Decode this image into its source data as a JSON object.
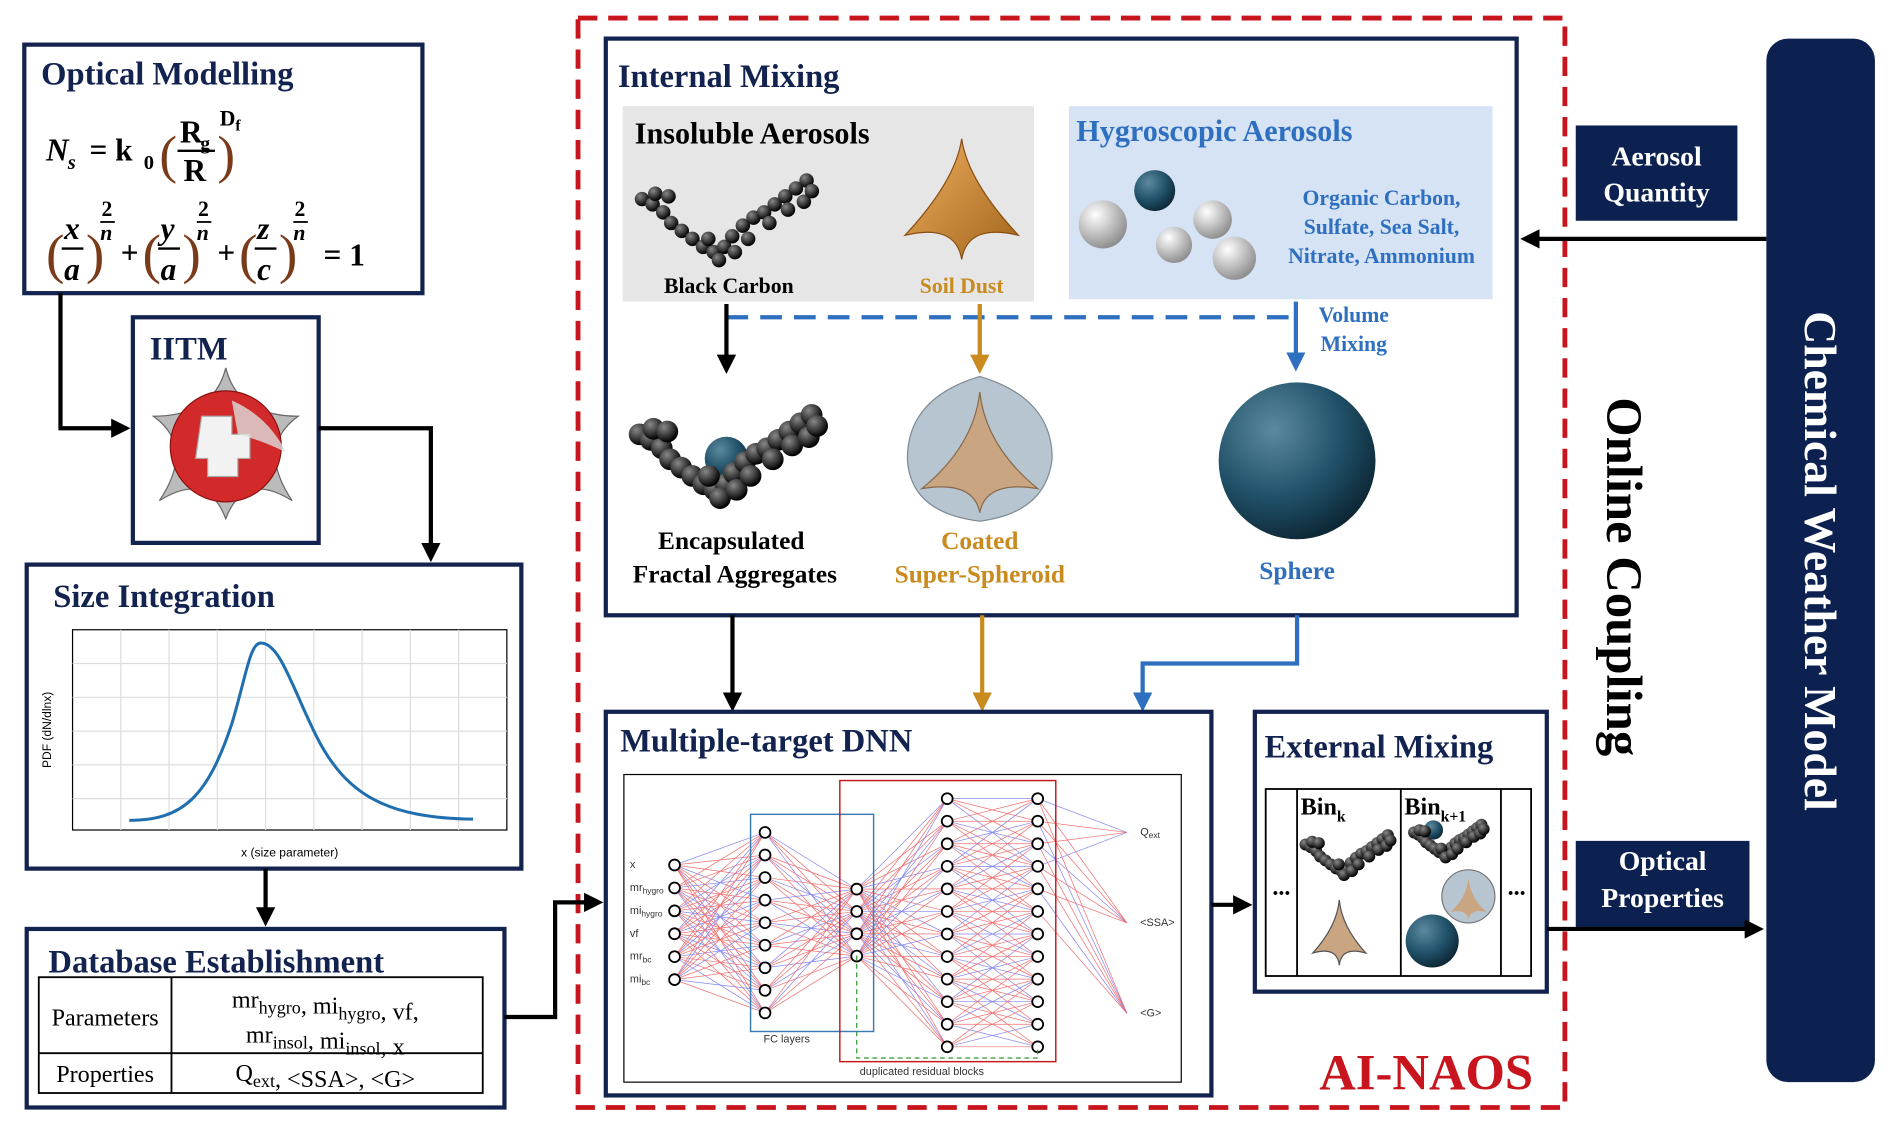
{
  "optical_modelling": {
    "title": "Optical Modelling",
    "eq1": {
      "lhs": "N",
      "lhs_sub": "s",
      "rhs": "= k",
      "rhs_sub": "0",
      "open": "(",
      "num": "R",
      "num_sub": "g",
      "den": "R",
      "close": ")",
      "exp": "D",
      "exp_sub": "f"
    },
    "eq2": {
      "open": "(",
      "close": ")",
      "plus": "+",
      "rhs": "= 1",
      "terms": [
        {
          "num": "x",
          "den": "a",
          "exp_num": "2",
          "exp_den": "n"
        },
        {
          "num": "y",
          "den": "a",
          "exp_num": "2",
          "exp_den": "n"
        },
        {
          "num": "z",
          "den": "c",
          "exp_num": "2",
          "exp_den": "n"
        }
      ]
    }
  },
  "iitm": {
    "title": "IITM"
  },
  "size_integration": {
    "title": "Size Integration",
    "y_label": "PDF (dN/dlnx)",
    "x_label": "x (size parameter)"
  },
  "database": {
    "title": "Database Establishment",
    "separator": ",",
    "rows": [
      {
        "label": "Parameters",
        "items": [
          [
            "mr",
            "hygro"
          ],
          [
            "mi",
            "hygro"
          ],
          [
            "vf"
          ],
          [
            "mr",
            "insol"
          ],
          [
            "mi",
            "insol"
          ],
          [
            "x"
          ]
        ]
      },
      {
        "label": "Properties",
        "items": [
          [
            "Q",
            "ext"
          ],
          [
            "<SSA>"
          ],
          [
            "<G>"
          ]
        ]
      }
    ]
  },
  "internal_mixing": {
    "title": "Internal Mixing",
    "insoluble": {
      "title": "Insoluble Aerosols",
      "black_carbon": "Black Carbon",
      "soil_dust": "Soil Dust"
    },
    "hygroscopic": {
      "title": "Hygroscopic Aerosols",
      "species": [
        "Organic Carbon,",
        "Sulfate, Sea Salt,",
        "Nitrate, Ammonium"
      ]
    },
    "volume_mixing": [
      "Volume",
      "Mixing"
    ],
    "shapes": {
      "fractal": [
        "Encapsulated",
        "Fractal Aggregates"
      ],
      "spheroid": [
        "Coated",
        "Super-Spheroid"
      ],
      "sphere": "Sphere"
    }
  },
  "dnn": {
    "title": "Multiple-target DNN",
    "inputs": [
      [
        "x"
      ],
      [
        "mr",
        "hygro"
      ],
      [
        "mi",
        "hygro"
      ],
      [
        "vf"
      ],
      [
        "mr",
        "bc"
      ],
      [
        "mi",
        "bc"
      ]
    ],
    "outputs": [
      [
        "Q",
        "ext"
      ],
      [
        "<SSA>"
      ],
      [
        "<G>"
      ]
    ],
    "fc_label": "FC layers",
    "residual_label": "duplicated residual blocks"
  },
  "external_mixing": {
    "title": "External Mixing",
    "bins": [
      [
        "Bin",
        "k"
      ],
      [
        "Bin",
        "k+1"
      ]
    ],
    "ellipsis": "..."
  },
  "aerosol_quantity": [
    "Aerosol",
    "Quantity"
  ],
  "optical_properties": [
    "Optical",
    "Properties"
  ],
  "chemical_weather_model": "Chemical Weather Model",
  "online_coupling": "Online Coupling",
  "ai_naos": "AI-NAOS"
}
